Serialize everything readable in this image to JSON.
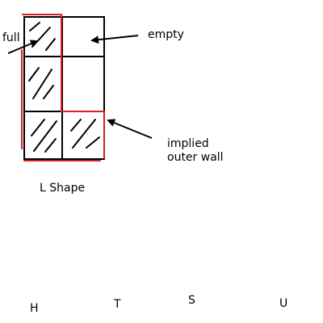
{
  "labels": {
    "full": "full",
    "empty": "empty",
    "implied_line1": "implied",
    "implied_line2": "outer wall",
    "shape_name": "L Shape",
    "letter_h": "H",
    "letter_t": "T",
    "letter_s": "S",
    "letter_u": "U"
  },
  "grid": {
    "rows": 3,
    "cols": 2,
    "cells": [
      [
        "full",
        "empty"
      ],
      [
        "full",
        "empty"
      ],
      [
        "full",
        "full"
      ]
    ]
  },
  "colors": {
    "outline": "#000000",
    "highlight": "#d42020"
  }
}
